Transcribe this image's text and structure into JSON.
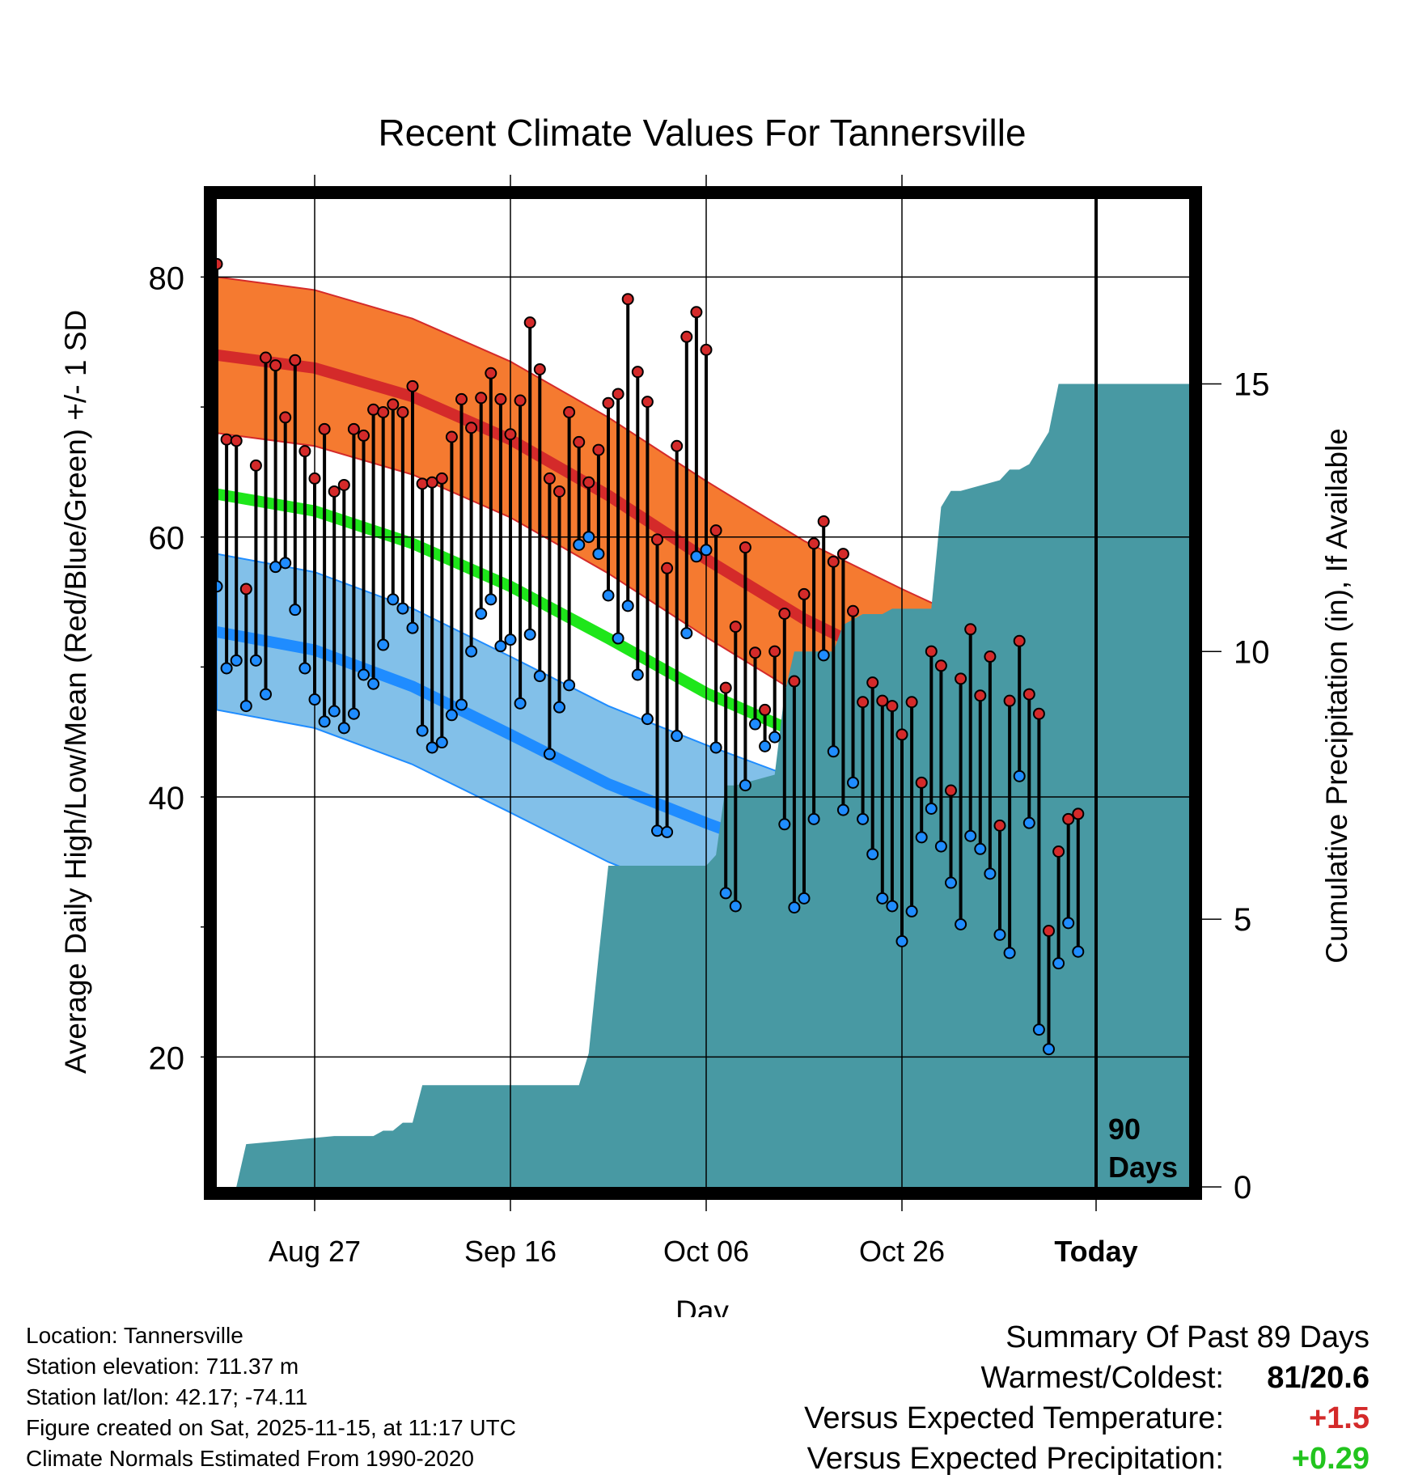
{
  "chart_data": {
    "type": "line",
    "title": "Recent Climate Values For Tannersville",
    "xlabel": "Day",
    "ylabel": "Average Daily High/Low/Mean (Red/Blue/Green) +/- 1 SD",
    "y2label": "Cumulative Precipitation (in), If Available",
    "xlim": [
      0,
      89
    ],
    "ylim": [
      10,
      86
    ],
    "y2lim": [
      0,
      15.5
    ],
    "x_ticks": [
      {
        "day": 10,
        "label": "Aug 27"
      },
      {
        "day": 30,
        "label": "Sep 16"
      },
      {
        "day": 50,
        "label": "Oct 06"
      },
      {
        "day": 70,
        "label": "Oct 26"
      },
      {
        "day": 90,
        "label": "Today"
      }
    ],
    "y_ticks": [
      20,
      40,
      60,
      80
    ],
    "y2_ticks": [
      0,
      5,
      10,
      15
    ],
    "today_day": 90,
    "today_label": "90",
    "today_label2": "Days",
    "normals": {
      "day": [
        0,
        10,
        20,
        30,
        40,
        50,
        60,
        70,
        80,
        90,
        99
      ],
      "high_mean": [
        74.0,
        73.0,
        70.8,
        67.5,
        63.2,
        58.3,
        53.7,
        50.0,
        46.5,
        42.8,
        39.5
      ],
      "high_sd": [
        6,
        6,
        6,
        6,
        6,
        6,
        6,
        6,
        6,
        6,
        6
      ],
      "mean": [
        63.3,
        62.0,
        59.5,
        56.2,
        52.2,
        48.0,
        44.7,
        41.6,
        38.4,
        35.2,
        32.3
      ],
      "low_mean": [
        52.7,
        51.3,
        48.5,
        44.8,
        41.0,
        38.0,
        35.2,
        32.2,
        29.5,
        27.0,
        24.8
      ],
      "low_sd": [
        6,
        6,
        6,
        6,
        6,
        6,
        6,
        6,
        6,
        6,
        6
      ]
    },
    "series": [
      {
        "name": "Daily High",
        "color": "#d42a2a",
        "values": [
          81,
          67.5,
          67.4,
          56,
          65.5,
          73.8,
          73.2,
          69.2,
          73.6,
          66.6,
          64.5,
          68.3,
          63.5,
          64,
          68.3,
          67.8,
          69.8,
          69.6,
          70.2,
          69.6,
          71.6,
          64.1,
          64.2,
          64.5,
          67.7,
          70.6,
          68.4,
          70.7,
          72.6,
          70.6,
          67.9,
          70.5,
          76.5,
          72.9,
          64.5,
          63.5,
          69.6,
          67.3,
          64.2,
          66.7,
          70.3,
          71,
          78.3,
          72.7,
          70.4,
          59.8,
          57.6,
          67,
          75.4,
          77.3,
          74.4,
          60.5,
          48.4,
          53.1,
          59.2,
          51.1,
          46.7,
          51.2,
          54.1,
          48.9,
          55.6,
          59.5,
          61.2,
          58.1,
          58.7,
          54.3,
          47.3,
          48.8,
          47.4,
          47,
          44.8,
          47.3,
          41.1,
          51.2,
          50.1,
          40.5,
          49.1,
          52.9,
          47.8,
          50.8,
          37.8,
          47.4,
          52,
          47.9,
          46.4,
          29.7,
          35.8,
          38.3,
          38.7
        ]
      },
      {
        "name": "Daily Low",
        "color": "#1f8cff",
        "values": [
          56.2,
          49.9,
          50.5,
          47,
          50.5,
          47.9,
          57.7,
          58,
          54.4,
          49.9,
          47.5,
          45.8,
          46.6,
          45.3,
          46.4,
          49.4,
          48.7,
          51.7,
          55.2,
          54.5,
          53,
          45.1,
          43.8,
          44.2,
          46.3,
          47.1,
          51.2,
          54.1,
          55.2,
          51.6,
          52.1,
          47.2,
          52.5,
          49.3,
          43.3,
          46.9,
          48.6,
          59.4,
          60,
          58.7,
          55.5,
          52.2,
          54.7,
          49.4,
          46,
          37.4,
          37.3,
          44.7,
          52.6,
          58.5,
          59,
          43.8,
          32.6,
          31.6,
          40.9,
          45.6,
          43.9,
          44.6,
          37.9,
          31.5,
          32.2,
          38.3,
          50.9,
          43.5,
          39,
          41.1,
          38.3,
          35.6,
          32.2,
          31.6,
          28.9,
          31.2,
          36.9,
          39.1,
          36.2,
          33.4,
          30.2,
          37,
          36,
          34.1,
          29.4,
          28,
          41.6,
          38,
          22.1,
          20.6,
          27.2,
          30.3,
          28.1
        ]
      }
    ],
    "precip": {
      "day": [
        0,
        2,
        3,
        12,
        13,
        16,
        17,
        18,
        19,
        20,
        21,
        37,
        38,
        39,
        40,
        50,
        51,
        52,
        53,
        57,
        58,
        59,
        62,
        63,
        64,
        65,
        66,
        68,
        69,
        70,
        73,
        74,
        75,
        76,
        80,
        81,
        82,
        83,
        84,
        85,
        86,
        89
      ],
      "cumulative": [
        0,
        0,
        0.8,
        0.95,
        0.95,
        0.95,
        1.05,
        1.05,
        1.2,
        1.2,
        1.9,
        1.9,
        2.5,
        4.3,
        6,
        6,
        6.2,
        7.5,
        7.5,
        7.7,
        9.2,
        10,
        10,
        10,
        10.5,
        10.6,
        10.7,
        10.7,
        10.8,
        10.8,
        10.8,
        12.7,
        13,
        13,
        13.2,
        13.4,
        13.4,
        13.5,
        13.8,
        14.1,
        15,
        15
      ]
    },
    "summary": {
      "title": "Summary Of Past 89 Days",
      "warmest_coldest_label": "Warmest/Coldest:",
      "warmest": "81",
      "coldest": "20.6",
      "temp_label": "Versus Expected Temperature:",
      "temp_value": "+1.5",
      "precip_label": "Versus Expected Precipitation:",
      "precip_value": "+0.29"
    }
  },
  "footer": {
    "location": "Location: Tannersville",
    "elevation": "Station elevation: 711.37 m",
    "latlon": "Station lat/lon: 42.17; -74.11",
    "created": "Figure created on Sat, 2025-11-15, at 11:17 UTC",
    "normals": "Climate Normals Estimated From 1990-2020"
  },
  "colors": {
    "high_band": "#f57a30",
    "high_line": "#d42a2a",
    "low_band": "#82c0e9",
    "low_line": "#1f8cff",
    "mean_line": "#1ee61a",
    "precip": "#4899a3",
    "warm_value": "#d42a2a",
    "wet_value": "#22c41e"
  }
}
